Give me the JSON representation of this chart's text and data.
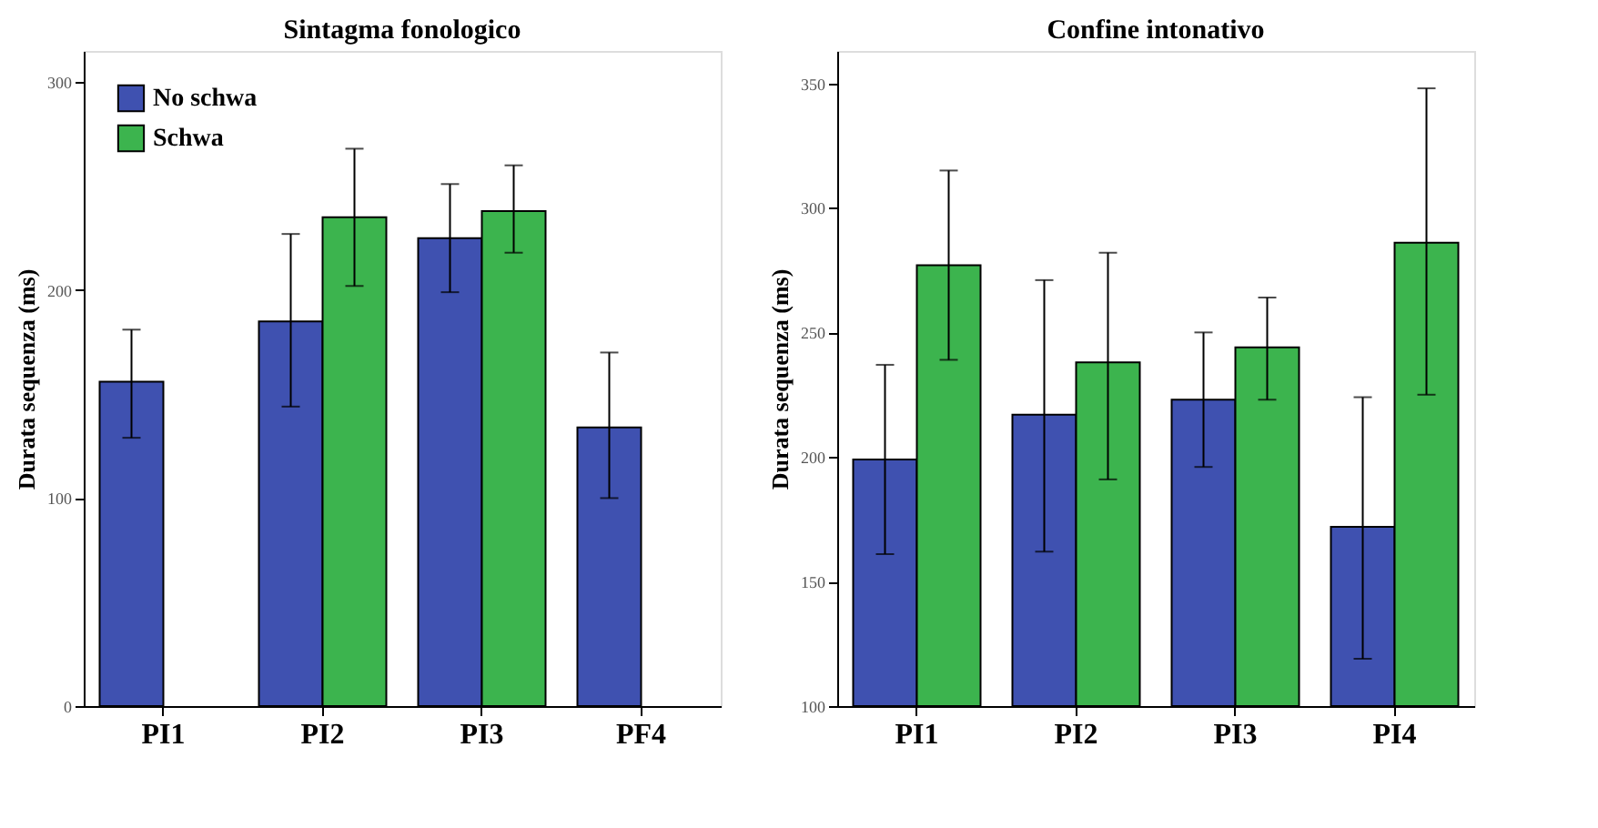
{
  "chart_data": [
    {
      "type": "bar",
      "title": "Sintagma fonologico",
      "ylabel": "Durata sequenza (ms)",
      "categories": [
        "PI1",
        "PI2",
        "PI3",
        "PF4"
      ],
      "series": [
        {
          "name": "No schwa",
          "color": "#3f51b0",
          "values": [
            156,
            185,
            225,
            134
          ],
          "errors": [
            [
              129,
              181
            ],
            [
              144,
              227
            ],
            [
              199,
              251
            ],
            [
              100,
              170
            ]
          ]
        },
        {
          "name": "Schwa",
          "color": "#3cb44e",
          "values": [
            null,
            235,
            238,
            null
          ],
          "errors": [
            null,
            [
              202,
              268
            ],
            [
              218,
              260
            ],
            null
          ]
        }
      ],
      "ylim": [
        0,
        315
      ],
      "yticks": [
        0,
        100,
        200,
        300
      ],
      "grid": false,
      "legend": "top left"
    },
    {
      "type": "bar",
      "title": "Confine intonativo",
      "ylabel": "Durata sequenza (ms)",
      "categories": [
        "PI1",
        "PI2",
        "PI3",
        "PI4"
      ],
      "series": [
        {
          "color": "#3f51b0",
          "values": [
            199,
            217,
            223,
            172
          ],
          "errors": [
            [
              161,
              237
            ],
            [
              162,
              271
            ],
            [
              196,
              250
            ],
            [
              119,
              224
            ]
          ]
        },
        {
          "color": "#3cb44e",
          "values": [
            277,
            238,
            244,
            286
          ],
          "errors": [
            [
              239,
              315
            ],
            [
              191,
              282
            ],
            [
              223,
              264
            ],
            [
              225,
              348
            ]
          ]
        }
      ],
      "ylim": [
        100,
        363
      ],
      "yticks": [
        100,
        150,
        200,
        250,
        300,
        350
      ],
      "grid": false
    }
  ]
}
